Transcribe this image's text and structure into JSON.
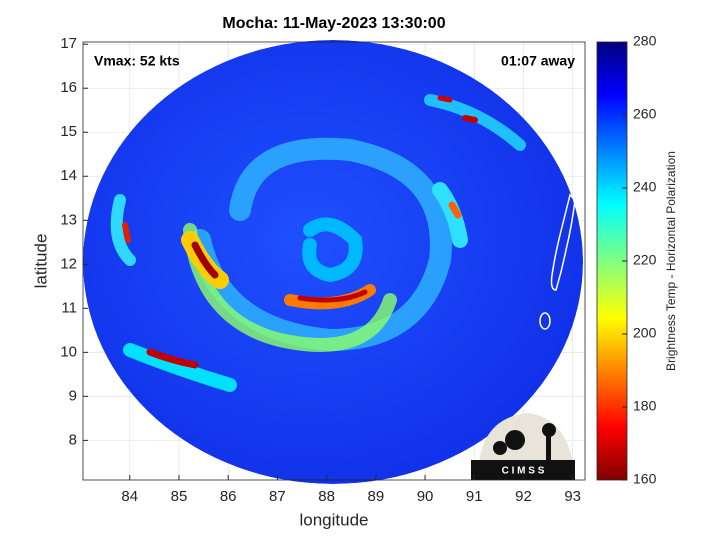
{
  "plot": {
    "title": "Mocha: 11-May-2023 13:30:00",
    "annotations": [
      "Vmax: 52 kts",
      "01:07 away"
    ],
    "xlabel": "longitude",
    "ylabel": "latitude",
    "xlim": [
      83.05,
      93.25
    ],
    "ylim": [
      7.1,
      17.05
    ],
    "xticks": [
      84,
      85,
      86,
      87,
      88,
      89,
      90,
      91,
      92,
      93
    ],
    "yticks": [
      8,
      9,
      10,
      11,
      12,
      13,
      14,
      15,
      16,
      17
    ],
    "grid": true,
    "logo": "C I M S S"
  },
  "colorbar": {
    "label": "Brightness Temp - Horizontal Polarization",
    "lim": [
      160,
      280
    ],
    "ticks": [
      160,
      180,
      200,
      220,
      240,
      260,
      280
    ]
  }
}
